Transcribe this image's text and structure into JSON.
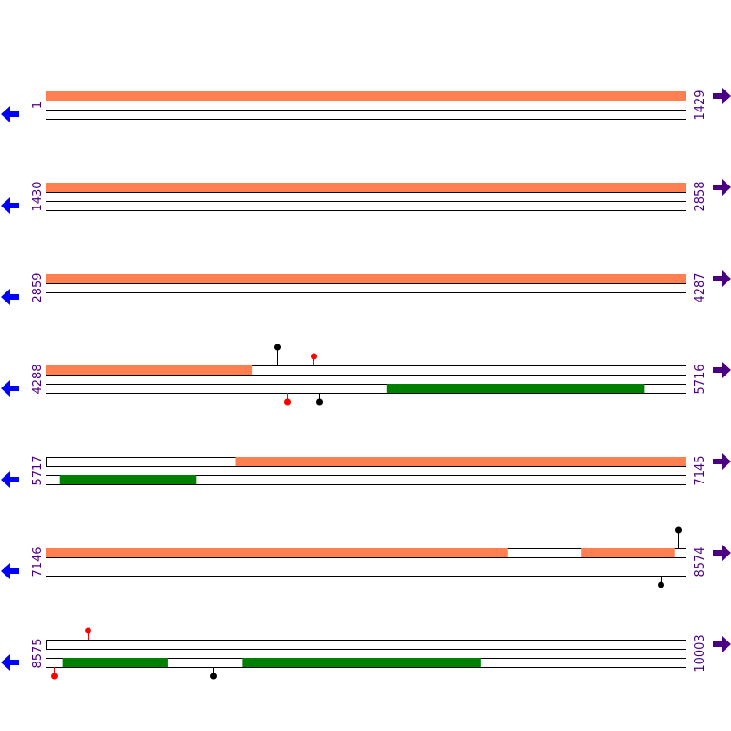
{
  "colors": {
    "forward_feature": "#ff7f50",
    "reverse_feature": "#008000",
    "left_arrow": "#0000ff",
    "right_arrow": "#4b0082",
    "label": "#4b0082",
    "site_red": "#ff0000",
    "site_black": "#000000",
    "line": "#000000"
  },
  "icons": {
    "left": "arrow-left-icon",
    "right": "arrow-right-icon"
  },
  "rows": [
    {
      "start_label": "1",
      "end_label": "1429",
      "start": 1,
      "end": 1429,
      "forward": [
        [
          1,
          1429
        ]
      ],
      "reverse": [],
      "sites": []
    },
    {
      "start_label": "1430",
      "end_label": "2858",
      "start": 1430,
      "end": 2858,
      "forward": [
        [
          1430,
          2858
        ]
      ],
      "reverse": [],
      "sites": []
    },
    {
      "start_label": "2859",
      "end_label": "4287",
      "start": 2859,
      "end": 4287,
      "forward": [
        [
          2859,
          4287
        ]
      ],
      "reverse": [],
      "sites": []
    },
    {
      "start_label": "4288",
      "end_label": "5716",
      "start": 4288,
      "end": 5716,
      "forward": [
        [
          4288,
          4748
        ]
      ],
      "reverse": [
        [
          5048,
          5623
        ]
      ],
      "sites": [
        {
          "pos": 4803,
          "strand": "top",
          "color": "black",
          "height": 20
        },
        {
          "pos": 4886,
          "strand": "top",
          "color": "red",
          "height": 10
        },
        {
          "pos": 4827,
          "strand": "bottom",
          "color": "red",
          "height": 10
        },
        {
          "pos": 4898,
          "strand": "bottom",
          "color": "black",
          "height": 10
        }
      ]
    },
    {
      "start_label": "5717",
      "end_label": "7145",
      "start": 5717,
      "end": 7145,
      "forward": [
        [
          6140,
          7145
        ]
      ],
      "reverse": [
        [
          5749,
          6053
        ]
      ],
      "sites": []
    },
    {
      "start_label": "7146",
      "end_label": "8574",
      "start": 7146,
      "end": 8574,
      "forward": [
        [
          7146,
          8176
        ],
        [
          8341,
          8549
        ]
      ],
      "reverse": [],
      "sites": [
        {
          "pos": 8557,
          "strand": "top",
          "color": "black",
          "height": 20
        },
        {
          "pos": 8518,
          "strand": "bottom",
          "color": "black",
          "height": 10
        }
      ]
    },
    {
      "start_label": "8575",
      "end_label": "10003",
      "start": 8575,
      "end": 10003,
      "forward": [],
      "reverse": [
        [
          8613,
          8847
        ],
        [
          9014,
          9544
        ]
      ],
      "sites": [
        {
          "pos": 8669,
          "strand": "top",
          "color": "red",
          "height": 10
        },
        {
          "pos": 8594,
          "strand": "bottom",
          "color": "red",
          "height": 10
        },
        {
          "pos": 8949,
          "strand": "bottom",
          "color": "black",
          "height": 10
        }
      ]
    }
  ]
}
